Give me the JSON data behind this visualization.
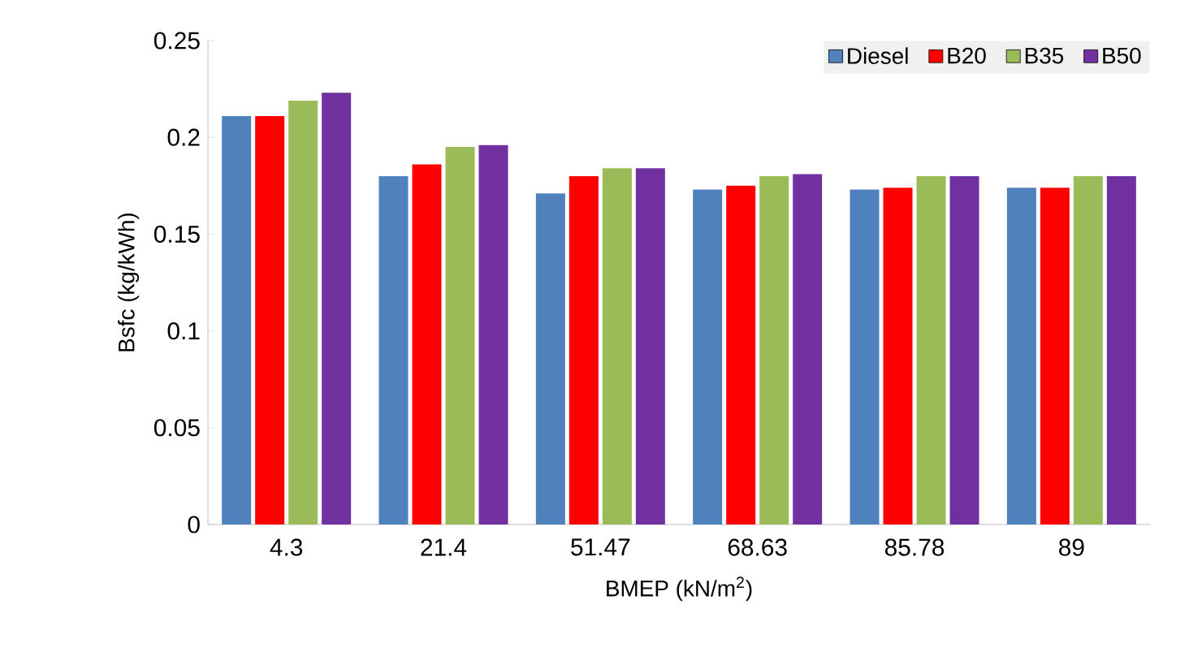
{
  "chart_data": {
    "type": "bar",
    "xlabel": "BMEP (kN/m$^{2}$)",
    "ylabel": "Bsfc (kg/kWh)",
    "categories": [
      "4.3",
      "21.4",
      "51.47",
      "68.63",
      "85.78",
      "89"
    ],
    "series": [
      {
        "name": "Diesel",
        "color": "#4f81bd",
        "values": [
          0.211,
          0.18,
          0.171,
          0.173,
          0.173,
          0.174
        ]
      },
      {
        "name": "B20",
        "color": "#ff0000",
        "values": [
          0.211,
          0.186,
          0.18,
          0.175,
          0.174,
          0.174
        ]
      },
      {
        "name": "B35",
        "color": "#9bbb59",
        "values": [
          0.219,
          0.195,
          0.184,
          0.18,
          0.18,
          0.18
        ]
      },
      {
        "name": "B50",
        "color": "#7030a0",
        "values": [
          0.223,
          0.196,
          0.184,
          0.181,
          0.18,
          0.18
        ]
      }
    ],
    "ylim": [
      0,
      0.25
    ],
    "yticks": [
      0,
      0.05,
      0.1,
      0.15,
      0.2,
      0.25
    ],
    "grid": false,
    "legend": "top right"
  }
}
